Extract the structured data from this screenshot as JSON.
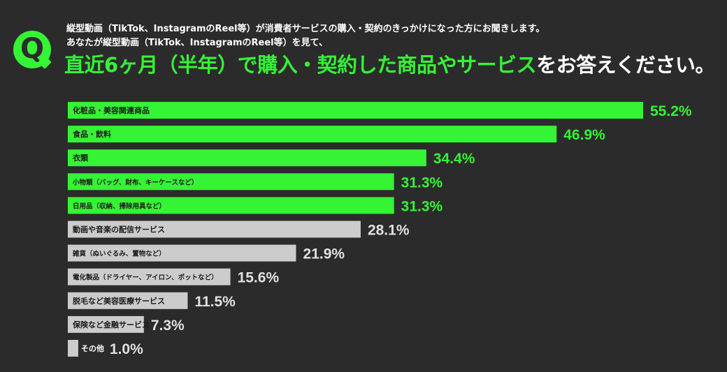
{
  "header": {
    "badge": "Q",
    "line1": "縦型動画（TikTok、InstagramのReel等）が消費者サービスの購入・契約のきっかけになった方にお聞きします。",
    "line2": "あなたが縦型動画（TikTok、InstagramのReel等）を見て、",
    "headline_green": "直近6ヶ月（半年）で購入・契約した商品やサービス",
    "headline_white": "をお答えください。"
  },
  "colors": {
    "background": "#2b2b2b",
    "highlight": "#35f335",
    "normal_bar": "#cccccc"
  },
  "chart_data": {
    "type": "bar",
    "orientation": "horizontal",
    "categories": [
      "化粧品・美容関連商品",
      "食品・飲料",
      "衣類",
      "小物類（バッグ、財布、キーケースなど）",
      "日用品（収納、掃除用具など）",
      "動画や音楽の配信サービス",
      "雑貨（ぬいぐるみ、置物など）",
      "電化製品（ドライヤー、アイロン、ポットなど）",
      "脱毛など美容医療サービス",
      "保険など金融サービス",
      "その他"
    ],
    "values": [
      55.2,
      46.9,
      34.4,
      31.3,
      31.3,
      28.1,
      21.9,
      15.6,
      11.5,
      7.3,
      1.0
    ],
    "value_labels": [
      "55.2%",
      "46.9%",
      "34.4%",
      "31.3%",
      "31.3%",
      "28.1%",
      "21.9%",
      "15.6%",
      "11.5%",
      "7.3%",
      "1.0%"
    ],
    "highlighted": [
      true,
      true,
      true,
      true,
      true,
      false,
      false,
      false,
      false,
      false,
      false
    ],
    "unit": "%",
    "xlim": [
      0,
      55.2
    ]
  }
}
